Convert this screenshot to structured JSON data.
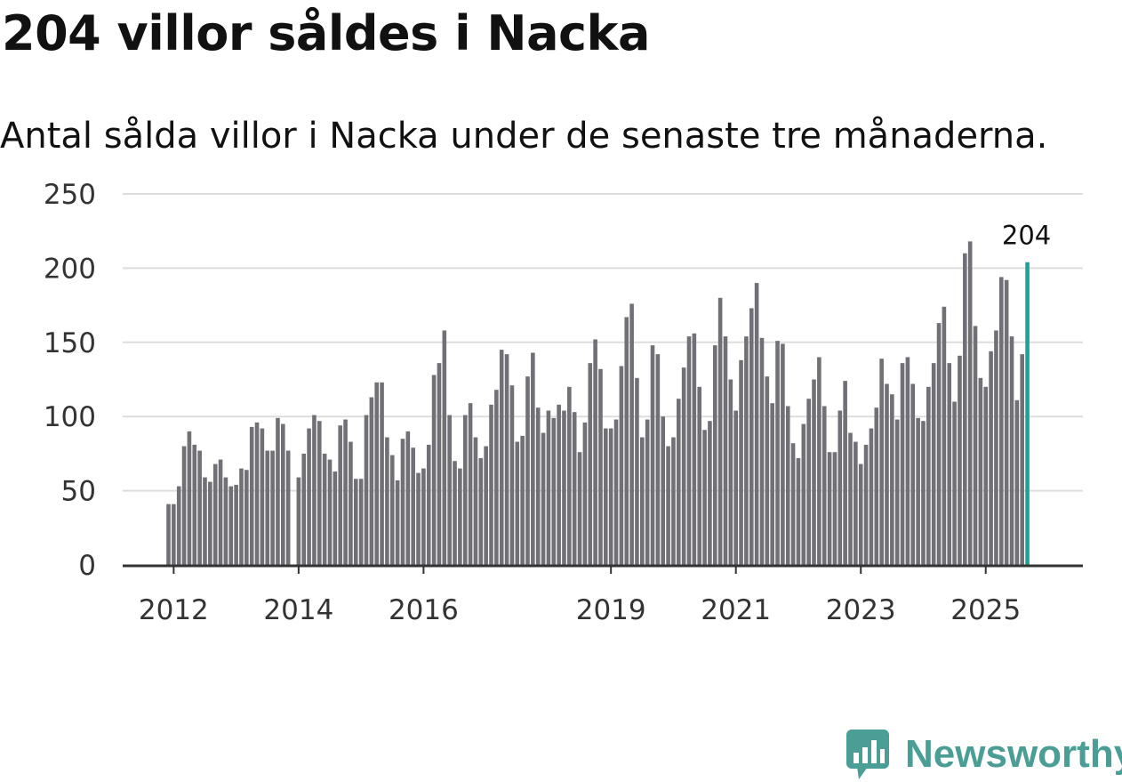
{
  "header": {
    "title": "204 villor såldes i Nacka",
    "subtitle": "Antal sålda villor i Nacka under de senaste tre månaderna."
  },
  "brand": {
    "name": "Newsworthy",
    "icon": "chart-bubble-icon",
    "color": "#4a9e96"
  },
  "chart_data": {
    "type": "bar",
    "title": "204 villor såldes i Nacka",
    "subtitle": "Antal sålda villor i Nacka under de senaste tre månaderna.",
    "xlabel": "",
    "ylabel": "",
    "ylim": [
      0,
      250
    ],
    "yticks": [
      0,
      50,
      100,
      150,
      200,
      250
    ],
    "grid": true,
    "legend": "none",
    "colors": {
      "bar": "#717076",
      "highlight": "#1ba398",
      "grid": "#dddddd",
      "axis": "#333333"
    },
    "start": "2011-12",
    "xticks": [
      {
        "label": "2012",
        "month": "2012-01"
      },
      {
        "label": "2014",
        "month": "2014-01"
      },
      {
        "label": "2016",
        "month": "2016-01"
      },
      {
        "label": "2019",
        "month": "2019-01"
      },
      {
        "label": "2021",
        "month": "2021-01"
      },
      {
        "label": "2023",
        "month": "2023-01"
      },
      {
        "label": "2025",
        "month": "2025-01"
      }
    ],
    "values": [
      41,
      41,
      53,
      80,
      90,
      81,
      77,
      59,
      56,
      68,
      71,
      59,
      53,
      54,
      65,
      64,
      93,
      96,
      92,
      77,
      77,
      99,
      95,
      77,
      null,
      59,
      75,
      92,
      101,
      97,
      75,
      71,
      63,
      94,
      98,
      83,
      58,
      58,
      101,
      113,
      123,
      123,
      86,
      74,
      57,
      85,
      90,
      79,
      62,
      65,
      81,
      128,
      136,
      158,
      101,
      70,
      65,
      101,
      109,
      86,
      72,
      80,
      108,
      118,
      145,
      142,
      121,
      83,
      87,
      127,
      143,
      106,
      89,
      104,
      99,
      108,
      104,
      120,
      103,
      76,
      96,
      136,
      152,
      132,
      92,
      92,
      98,
      134,
      167,
      176,
      126,
      86,
      98,
      148,
      142,
      100,
      80,
      86,
      112,
      133,
      154,
      156,
      120,
      91,
      97,
      148,
      180,
      154,
      125,
      104,
      138,
      154,
      173,
      190,
      153,
      127,
      109,
      151,
      149,
      107,
      82,
      72,
      95,
      112,
      125,
      140,
      107,
      76,
      76,
      104,
      124,
      89,
      83,
      68,
      81,
      92,
      106,
      139,
      122,
      115,
      98,
      136,
      140,
      122,
      99,
      97,
      120,
      136,
      163,
      174,
      136,
      110,
      141,
      210,
      218,
      161,
      126,
      120,
      144,
      158,
      194,
      192,
      154,
      111,
      142,
      204
    ],
    "highlight_label": "204"
  }
}
